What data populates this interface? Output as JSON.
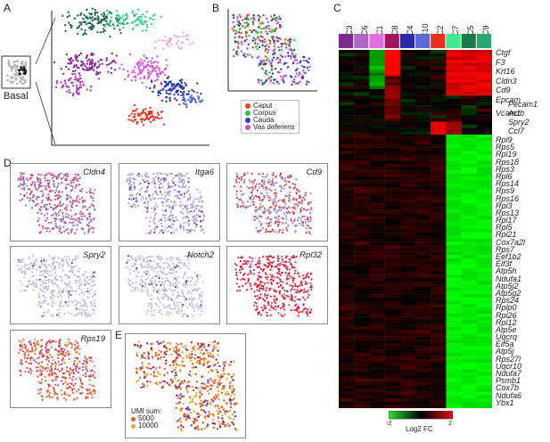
{
  "panels": {
    "A": {
      "label": "A",
      "inset_label": "Basal"
    },
    "B": {
      "label": "B",
      "legend": [
        {
          "name": "Caput",
          "color": "#e8431f"
        },
        {
          "name": "Corpus",
          "color": "#33c040"
        },
        {
          "name": "Cauda",
          "color": "#2a3fbf"
        },
        {
          "name": "Vas deferens",
          "color": "#c54ad8"
        }
      ]
    },
    "C": {
      "label": "C",
      "clusters": [
        {
          "name": "C3",
          "color": "#7b2a8e"
        },
        {
          "name": "C6",
          "color": "#b066c4"
        },
        {
          "name": "C1",
          "color": "#e070e0"
        },
        {
          "name": "C8",
          "color": "#a0165a"
        },
        {
          "name": "C4",
          "color": "#2a2aa8"
        },
        {
          "name": "C10",
          "color": "#5a6ad8"
        },
        {
          "name": "C2",
          "color": "#e8301f"
        },
        {
          "name": "C7",
          "color": "#40e890"
        },
        {
          "name": "C5",
          "color": "#1a7a4a"
        },
        {
          "name": "C9",
          "color": "#2aa870"
        }
      ],
      "genes_top": [
        "Ctgf",
        "F3",
        "Krt16",
        "Cldn3",
        "Cd9",
        "Epcam"
      ],
      "genes_mid": [
        "Vcam1"
      ],
      "genes_mid2": [
        "Pecam1",
        "Actb",
        "Spry2",
        "Ccl7"
      ],
      "genes_bottom": [
        "Rpl9",
        "Rps5",
        "Rpl19",
        "Rps18",
        "Rps3",
        "Rpl6",
        "Rps14",
        "Rps9",
        "Rps16",
        "Rpl3",
        "Rps13",
        "Rpl17",
        "Rpl5",
        "Rpl21",
        "Cox7a2l",
        "Rps7",
        "Eef1b2",
        "Eif3f",
        "Atp5h",
        "Ndufa1",
        "Atp5j2",
        "Atp5g2",
        "Rps24",
        "Rplp0",
        "Rpl26",
        "Rpl12",
        "Atp5e",
        "Uqcrq",
        "Eif5a",
        "Atp5j",
        "Rps27l",
        "Uqcr10",
        "Ndufa7",
        "Psmb1",
        "Cox7b",
        "Ndufa6",
        "Ybx1"
      ],
      "colorbar": {
        "min": "-2",
        "max": "2",
        "label": "Log2 FC"
      }
    },
    "D": {
      "label": "D",
      "genes": [
        "Cldn4",
        "Itga6",
        "Cd9",
        "Spry2",
        "Notch2",
        "Rpl32",
        "Rps19"
      ]
    },
    "E": {
      "label": "E",
      "legend_title": "UMI sum:",
      "legend": [
        {
          "value": "5000",
          "color": "#e05a20"
        },
        {
          "value": "10000",
          "color": "#f0a030"
        }
      ]
    }
  }
}
